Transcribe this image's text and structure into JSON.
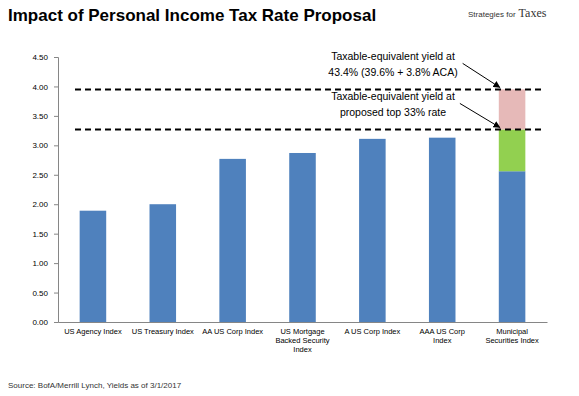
{
  "chart_data": {
    "type": "bar",
    "title": "Impact of Personal Income Tax Rate Proposal",
    "subtitle": [
      "Strategies for",
      "Taxes"
    ],
    "source": "Source: BofA/Merrill Lynch, Yields as of 3/1/2017",
    "categories": [
      "US Agency Index",
      "US Treasury Index",
      "AA US Corp Index",
      "US Mortgage Backed Security Index",
      "A US Corp Index",
      "AAA US Corp Index",
      "Municipal Securities Index"
    ],
    "series": [
      {
        "color": "#4f81bd",
        "values": [
          1.89,
          2,
          2.77,
          2.87,
          3.11,
          3.13,
          2.56
        ]
      },
      {
        "color": "#92d050",
        "values": [
          null,
          null,
          null,
          null,
          null,
          null,
          0.71
        ]
      },
      {
        "color": "#e6b9b8",
        "values": [
          null,
          null,
          null,
          null,
          null,
          null,
          0.68
        ]
      }
    ],
    "stacked": true,
    "ylim": [
      0,
      4.5
    ],
    "yticks": [
      {
        "value": 0,
        "label": "0.00"
      },
      {
        "value": 0.5,
        "label": "0.50"
      },
      {
        "value": 1,
        "label": "1.00"
      },
      {
        "value": 1.5,
        "label": "1.50"
      },
      {
        "value": 2,
        "label": "2.00"
      },
      {
        "value": 2.5,
        "label": "2.50"
      },
      {
        "value": 3,
        "label": "3.00"
      },
      {
        "value": 3.5,
        "label": "3.50"
      },
      {
        "value": 4,
        "label": "4.00"
      },
      {
        "value": 4.5,
        "label": "4.50"
      }
    ],
    "grid": false,
    "annotations": [
      {
        "text": [
          "Taxable-equivalent yield at",
          "43.4% (39.6% + 3.8% ACA)"
        ],
        "value": 3.95
      },
      {
        "text": [
          "Taxable-equivalent yield at",
          "proposed top 33% rate"
        ],
        "value": 3.27
      }
    ]
  }
}
